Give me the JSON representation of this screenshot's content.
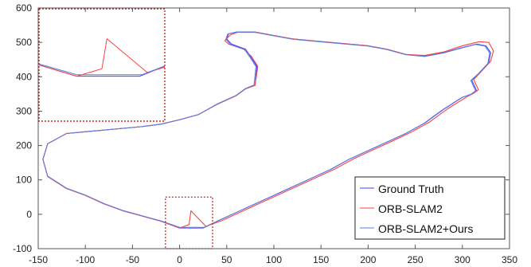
{
  "chart_data": {
    "type": "line",
    "title": "",
    "xlabel": "",
    "ylabel": "",
    "xlim": [
      -150,
      350
    ],
    "ylim": [
      -100,
      600
    ],
    "xticks": [
      -150,
      -100,
      -50,
      0,
      50,
      100,
      150,
      200,
      250,
      300,
      350
    ],
    "yticks": [
      -100,
      0,
      100,
      200,
      300,
      400,
      500,
      600
    ],
    "grid": false,
    "legend": {
      "position": "bottom-right"
    },
    "series": [
      {
        "name": "Ground Truth",
        "color": "#4040ff",
        "x": [
          25,
          0,
          -20,
          -40,
          -60,
          -80,
          -100,
          -120,
          -140,
          -145,
          -140,
          -120,
          -100,
          -80,
          -60,
          -40,
          -20,
          0,
          20,
          40,
          60,
          70,
          80,
          82,
          75,
          70,
          55,
          50,
          52,
          60,
          80,
          100,
          120,
          140,
          160,
          180,
          200,
          220,
          240,
          260,
          280,
          300,
          315,
          325,
          330,
          328,
          318,
          310,
          315,
          310,
          300,
          280,
          260,
          240,
          220,
          200,
          180,
          160,
          140,
          120,
          100,
          80,
          60,
          40,
          25
        ],
        "y": [
          -40,
          -40,
          -20,
          -5,
          10,
          30,
          55,
          75,
          110,
          160,
          205,
          235,
          240,
          245,
          250,
          255,
          262,
          275,
          290,
          320,
          345,
          365,
          375,
          430,
          460,
          480,
          495,
          510,
          525,
          530,
          530,
          520,
          510,
          505,
          500,
          495,
          490,
          480,
          465,
          460,
          470,
          485,
          495,
          490,
          470,
          440,
          410,
          390,
          360,
          350,
          340,
          305,
          265,
          235,
          210,
          185,
          160,
          130,
          105,
          80,
          55,
          30,
          5,
          -20,
          -40
        ]
      },
      {
        "name": "ORB-SLAM2",
        "color": "#ff4040",
        "x": [
          12,
          10,
          0,
          -20,
          -40,
          -60,
          -80,
          -100,
          -120,
          -140,
          -145,
          -140,
          -120,
          -100,
          -80,
          -60,
          -40,
          -20,
          0,
          20,
          40,
          60,
          70,
          80,
          83,
          76,
          68,
          52,
          48,
          54,
          62,
          80,
          100,
          120,
          140,
          160,
          180,
          200,
          220,
          240,
          260,
          280,
          300,
          318,
          328,
          333,
          330,
          320,
          312,
          317,
          312,
          305,
          285,
          265,
          245,
          225,
          205,
          185,
          165,
          145,
          125,
          105,
          85,
          65,
          45,
          28,
          12
        ],
        "y": [
          10,
          -30,
          -40,
          -20,
          -5,
          10,
          30,
          55,
          75,
          110,
          160,
          205,
          235,
          240,
          245,
          250,
          255,
          262,
          275,
          290,
          320,
          345,
          365,
          375,
          430,
          460,
          480,
          495,
          505,
          522,
          530,
          530,
          520,
          510,
          505,
          500,
          495,
          490,
          480,
          465,
          462,
          472,
          490,
          502,
          500,
          475,
          445,
          415,
          392,
          362,
          352,
          342,
          308,
          268,
          238,
          212,
          187,
          162,
          132,
          107,
          82,
          57,
          32,
          7,
          -18,
          -35,
          10
        ]
      },
      {
        "name": "ORB-SLAM2+Ours",
        "color": "#5a7fe0",
        "x": [
          26,
          0,
          -20,
          -40,
          -60,
          -80,
          -100,
          -120,
          -140,
          -145,
          -140,
          -120,
          -100,
          -80,
          -60,
          -40,
          -20,
          0,
          20,
          40,
          60,
          70,
          79,
          81,
          74,
          69,
          54,
          49,
          51,
          59,
          80,
          100,
          120,
          140,
          160,
          180,
          200,
          220,
          240,
          260,
          280,
          300,
          314,
          324,
          329,
          327,
          317,
          309,
          314,
          309,
          299,
          279,
          259,
          239,
          219,
          199,
          179,
          159,
          139,
          119,
          99,
          79,
          59,
          39,
          26
        ],
        "y": [
          -38,
          -38,
          -19,
          -4,
          11,
          31,
          56,
          76,
          111,
          160,
          205,
          235,
          240,
          245,
          250,
          255,
          262,
          275,
          290,
          321,
          346,
          366,
          376,
          430,
          459,
          479,
          494,
          509,
          524,
          529,
          529,
          519,
          509,
          504,
          499,
          494,
          489,
          479,
          464,
          459,
          469,
          484,
          494,
          489,
          469,
          439,
          409,
          389,
          359,
          349,
          339,
          304,
          264,
          234,
          209,
          184,
          159,
          129,
          104,
          79,
          54,
          29,
          4,
          -21,
          -38
        ]
      }
    ],
    "zoom_inset": {
      "source_x": [
        -15,
        35
      ],
      "source_y": [
        -100,
        50
      ],
      "box_color": "#cc2222"
    }
  }
}
